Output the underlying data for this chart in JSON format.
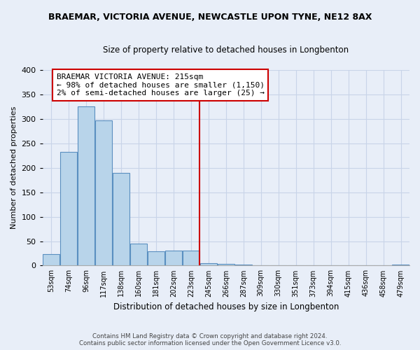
{
  "title_line1": "BRAEMAR, VICTORIA AVENUE, NEWCASTLE UPON TYNE, NE12 8AX",
  "title_line2": "Size of property relative to detached houses in Longbenton",
  "xlabel": "Distribution of detached houses by size in Longbenton",
  "ylabel": "Number of detached properties",
  "bar_labels": [
    "53sqm",
    "74sqm",
    "96sqm",
    "117sqm",
    "138sqm",
    "160sqm",
    "181sqm",
    "202sqm",
    "223sqm",
    "245sqm",
    "266sqm",
    "287sqm",
    "309sqm",
    "330sqm",
    "351sqm",
    "373sqm",
    "394sqm",
    "415sqm",
    "436sqm",
    "458sqm",
    "479sqm"
  ],
  "bar_values": [
    23,
    232,
    325,
    297,
    190,
    45,
    29,
    30,
    30,
    5,
    3,
    2,
    1,
    0,
    0,
    0,
    1,
    0,
    0,
    0,
    2
  ],
  "bar_color": "#b8d4ea",
  "bar_edge_color": "#5a8fc0",
  "vline_color": "#cc0000",
  "annotation_title": "BRAEMAR VICTORIA AVENUE: 215sqm",
  "annotation_line1": "← 98% of detached houses are smaller (1,150)",
  "annotation_line2": "2% of semi-detached houses are larger (25) →",
  "annotation_box_color": "#ffffff",
  "annotation_box_edge": "#cc0000",
  "ylim": [
    0,
    400
  ],
  "yticks": [
    0,
    50,
    100,
    150,
    200,
    250,
    300,
    350,
    400
  ],
  "footer_line1": "Contains HM Land Registry data © Crown copyright and database right 2024.",
  "footer_line2": "Contains public sector information licensed under the Open Government Licence v3.0.",
  "background_color": "#e8eef8",
  "plot_bg_color": "#e8eef8",
  "grid_color": "#c8d4e8"
}
